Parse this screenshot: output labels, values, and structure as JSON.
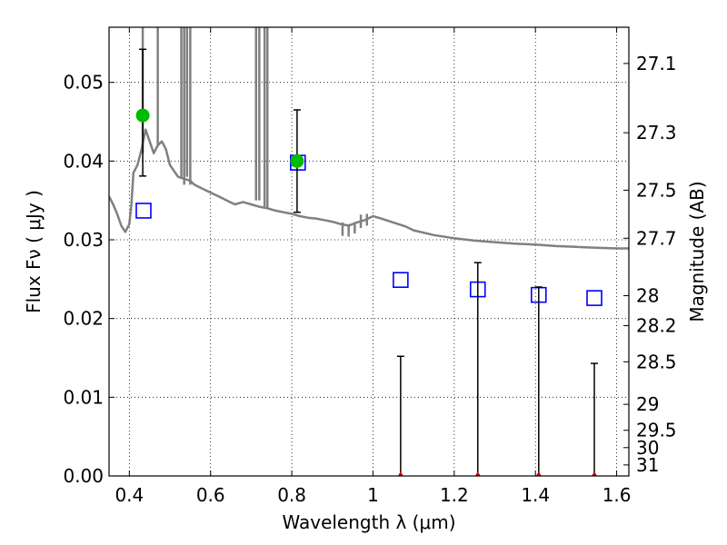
{
  "chart_data": {
    "type": "scatter",
    "title": "",
    "xlabel": "Wavelength  λ (μm)",
    "ylabel": "Flux  Fν ( μJy )",
    "ylabel_right": "Magnitude (AB)",
    "xlim": [
      0.35,
      1.63
    ],
    "ylim": [
      0.0,
      0.057
    ],
    "grid": true,
    "x_ticks": [
      0.4,
      0.6,
      0.8,
      1.0,
      1.2,
      1.4,
      1.6
    ],
    "x_tick_labels": [
      "0.4",
      "0.6",
      "0.8",
      "1",
      "1.2",
      "1.4",
      "1.6"
    ],
    "y_ticks": [
      0.0,
      0.01,
      0.02,
      0.03,
      0.04,
      0.05
    ],
    "y_tick_labels": [
      "0.00",
      "0.01",
      "0.02",
      "0.03",
      "0.04",
      "0.05"
    ],
    "magnitude_ticks": [
      {
        "label": "27.1",
        "flux": 0.0524
      },
      {
        "label": "27.3",
        "flux": 0.0436
      },
      {
        "label": "27.5",
        "flux": 0.0363
      },
      {
        "label": "27.7",
        "flux": 0.0302
      },
      {
        "label": "28",
        "flux": 0.0229
      },
      {
        "label": "28.2",
        "flux": 0.0191
      },
      {
        "label": "28.5",
        "flux": 0.0145
      },
      {
        "label": "29",
        "flux": 0.0091
      },
      {
        "label": "29.5",
        "flux": 0.0058
      },
      {
        "label": "30",
        "flux": 0.0036
      },
      {
        "label": "31",
        "flux": 0.0014
      }
    ],
    "series": [
      {
        "name": "model spectrum",
        "kind": "line",
        "color": "#808080",
        "x": [
          0.35,
          0.36,
          0.37,
          0.38,
          0.39,
          0.4,
          0.405,
          0.41,
          0.42,
          0.43,
          0.44,
          0.45,
          0.46,
          0.47,
          0.48,
          0.49,
          0.5,
          0.52,
          0.55,
          0.56,
          0.58,
          0.6,
          0.62,
          0.64,
          0.66,
          0.68,
          0.7,
          0.72,
          0.74,
          0.76,
          0.78,
          0.8,
          0.82,
          0.84,
          0.86,
          0.88,
          0.9,
          0.92,
          0.94,
          0.96,
          0.98,
          1.0,
          1.02,
          1.05,
          1.08,
          1.1,
          1.15,
          1.2,
          1.25,
          1.3,
          1.35,
          1.4,
          1.45,
          1.5,
          1.55,
          1.6,
          1.63
        ],
        "y": [
          0.0355,
          0.0345,
          0.0333,
          0.0318,
          0.031,
          0.032,
          0.0345,
          0.0385,
          0.0395,
          0.0415,
          0.044,
          0.0425,
          0.041,
          0.042,
          0.0425,
          0.0415,
          0.0395,
          0.038,
          0.0375,
          0.037,
          0.0365,
          0.036,
          0.0355,
          0.035,
          0.0345,
          0.0348,
          0.0345,
          0.0342,
          0.034,
          0.0337,
          0.0335,
          0.0333,
          0.033,
          0.0328,
          0.0327,
          0.0325,
          0.0323,
          0.032,
          0.0318,
          0.0322,
          0.0325,
          0.033,
          0.0327,
          0.0322,
          0.0317,
          0.0312,
          0.0306,
          0.0302,
          0.0299,
          0.0297,
          0.0295,
          0.0294,
          0.0292,
          0.0291,
          0.029,
          0.0289,
          0.0289
        ]
      },
      {
        "name": "model spikes",
        "kind": "spikes",
        "color": "#808080",
        "x": [
          0.433,
          0.47,
          0.528,
          0.535,
          0.542,
          0.55,
          0.712,
          0.72,
          0.733,
          0.74
        ],
        "base": [
          0.041,
          0.042,
          0.038,
          0.037,
          0.038,
          0.037,
          0.035,
          0.035,
          0.034,
          0.034
        ]
      },
      {
        "name": "absorption dips",
        "kind": "dips",
        "color": "#808080",
        "x": [
          0.925,
          0.94,
          0.955,
          0.97,
          0.985
        ],
        "top": [
          0.0322,
          0.032,
          0.032,
          0.0332,
          0.0333
        ],
        "bottom": [
          0.0305,
          0.0304,
          0.0308,
          0.0315,
          0.0318
        ]
      },
      {
        "name": "model photometry",
        "kind": "squares",
        "color": "#0000ff",
        "x": [
          0.435,
          0.815,
          1.068,
          1.258,
          1.408,
          1.545
        ],
        "y": [
          0.0337,
          0.0398,
          0.0249,
          0.0237,
          0.023,
          0.0226
        ]
      },
      {
        "name": "observed detections",
        "kind": "points_with_errors",
        "color": "#00bb00",
        "x": [
          0.433,
          0.813
        ],
        "y": [
          0.0458,
          0.04
        ],
        "yerr_low": [
          0.0381,
          0.0335
        ],
        "yerr_high": [
          0.0542,
          0.0465
        ]
      },
      {
        "name": "upper limits",
        "kind": "limits",
        "color": "#cc0000",
        "x": [
          1.068,
          1.258,
          1.408,
          1.545
        ],
        "y": [
          0.0,
          0.0,
          0.0,
          0.0
        ],
        "yerr_high": [
          0.0152,
          0.0271,
          0.024,
          0.0143
        ]
      }
    ]
  }
}
